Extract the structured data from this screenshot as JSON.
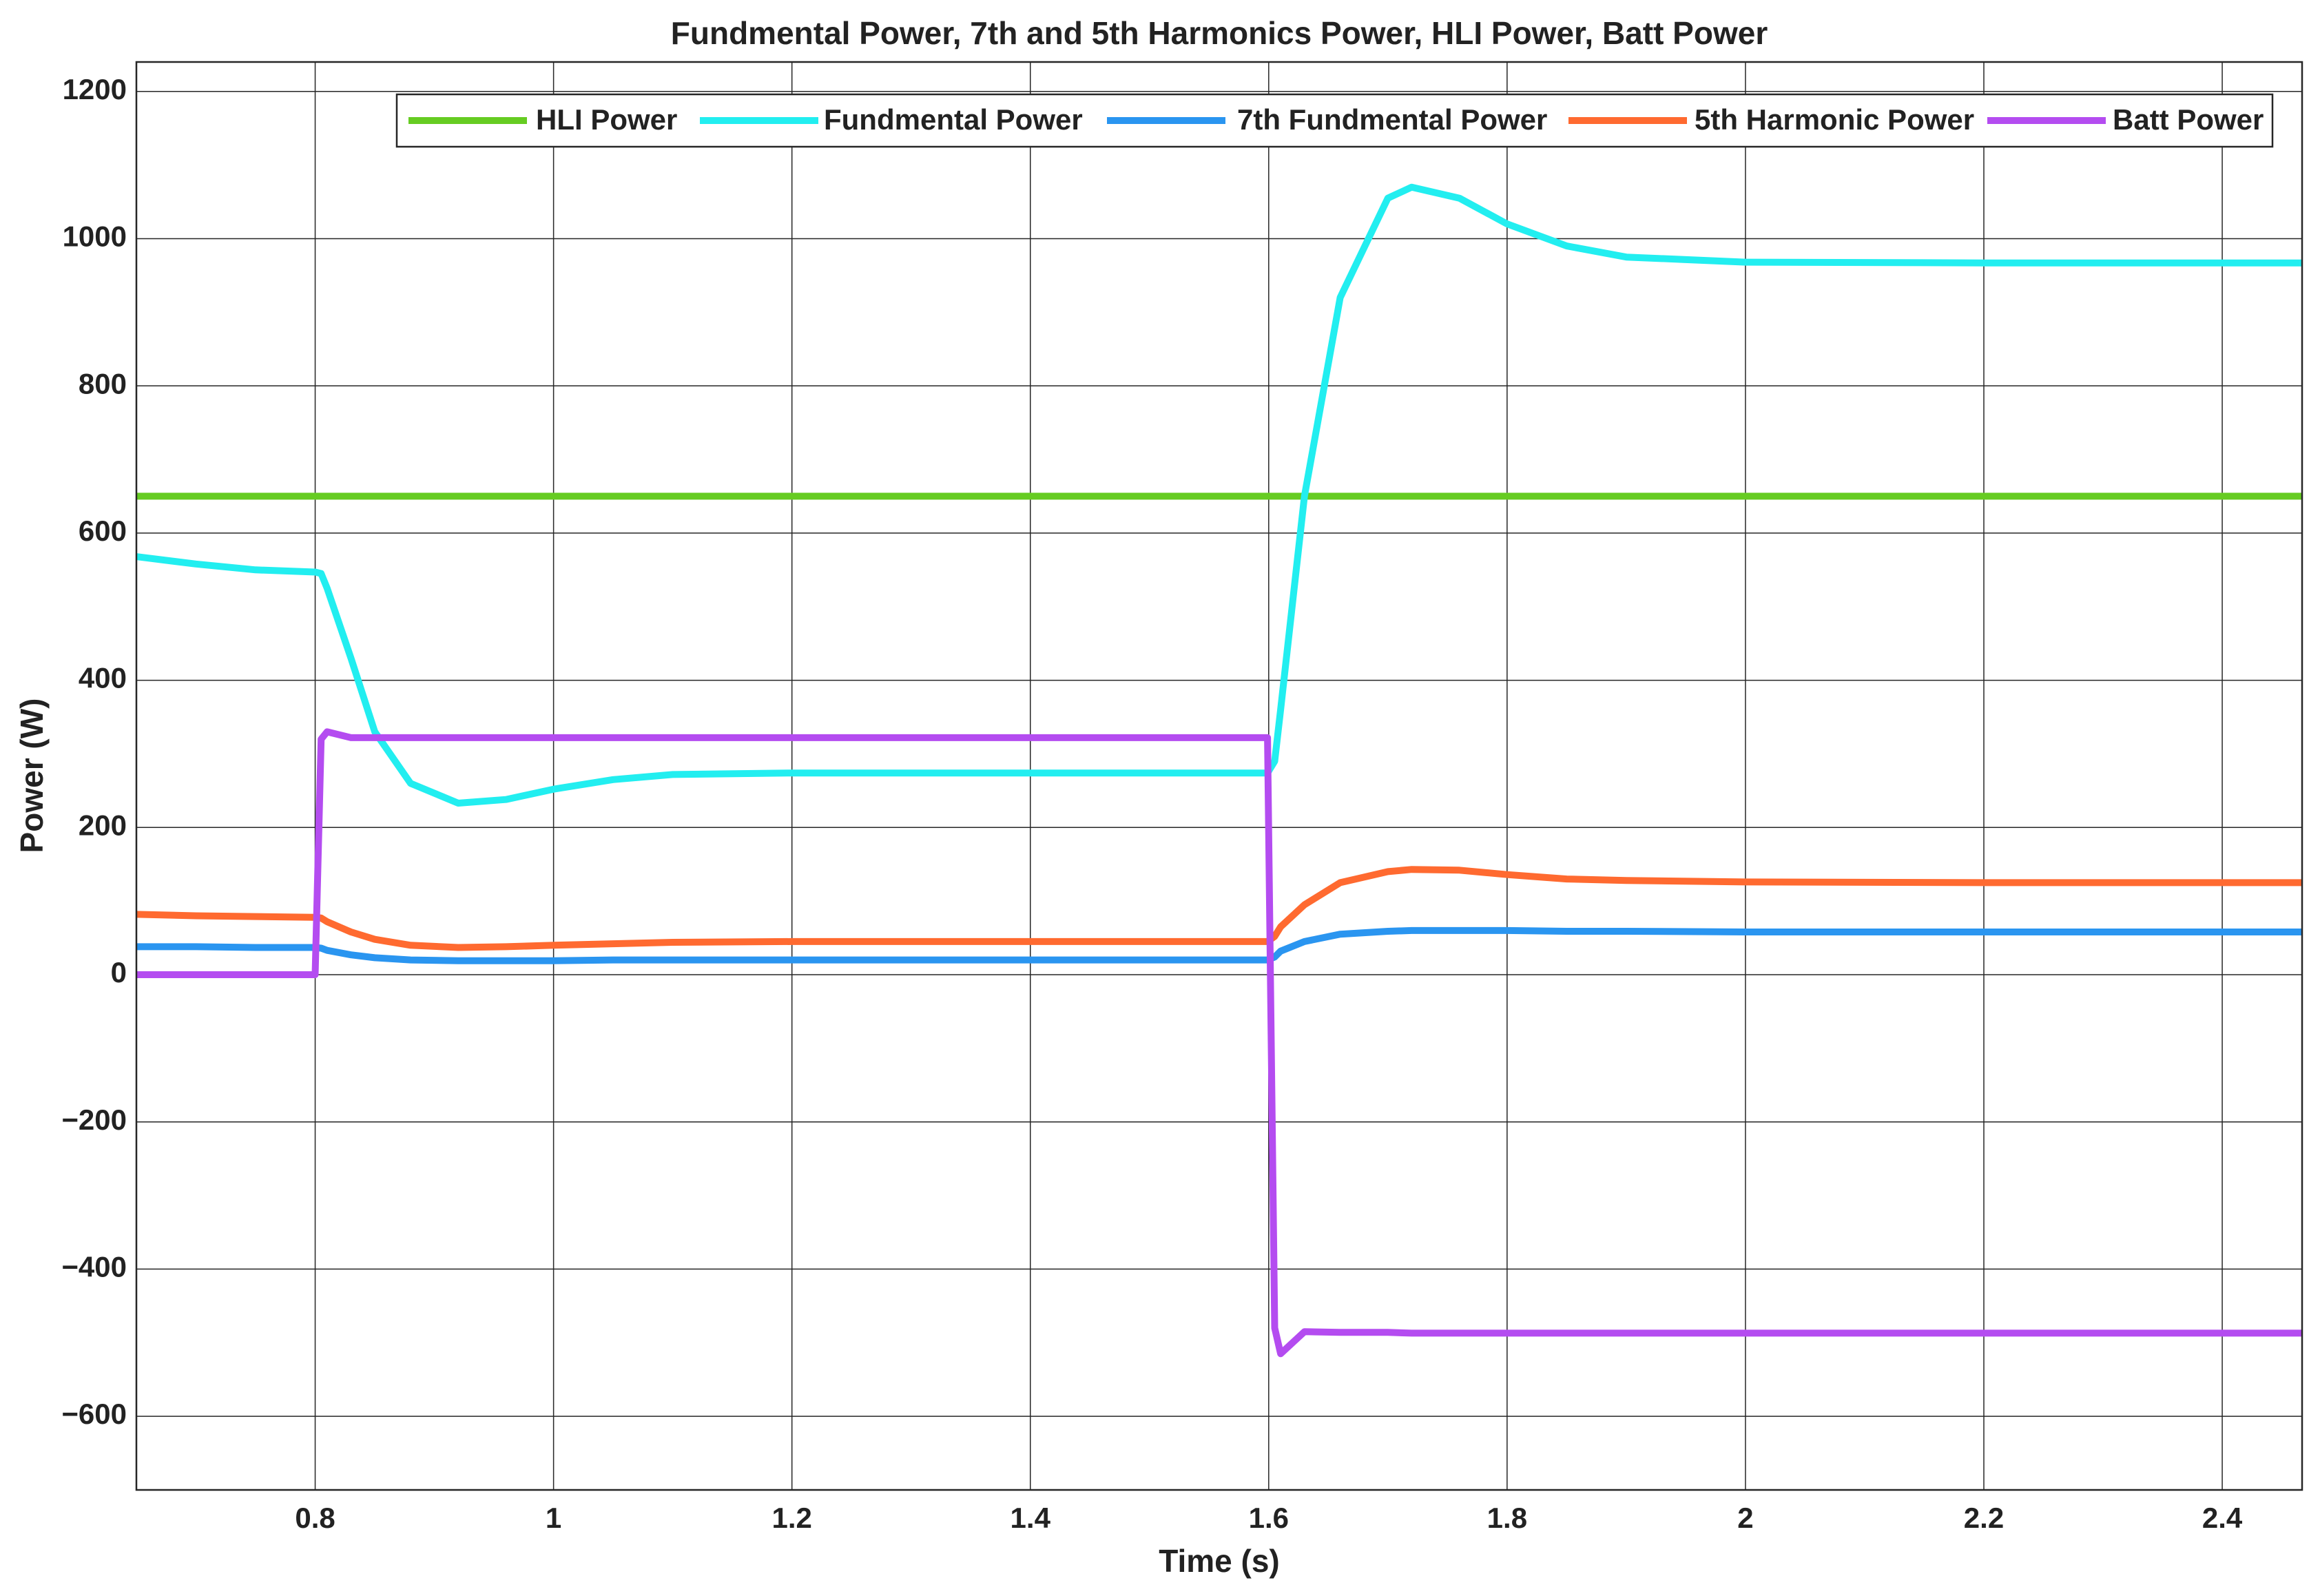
{
  "chart_data": {
    "type": "line",
    "title": "Fundmental  Power, 7th and 5th Harmonics Power, HLI Power, Batt Power",
    "x_label": "Time (s)",
    "y_label": "Power (W)",
    "x": [
      0.65,
      0.7,
      0.75,
      0.8,
      0.805,
      0.81,
      0.83,
      0.85,
      0.88,
      0.92,
      0.96,
      1.0,
      1.05,
      1.1,
      1.2,
      1.4,
      1.599,
      1.605,
      1.61,
      1.63,
      1.66,
      1.7,
      1.72,
      1.76,
      1.8,
      1.85,
      1.9,
      2.0,
      2.2,
      2.467
    ],
    "series": [
      {
        "name": "HLI Power",
        "color": "#66cc22",
        "values": [
          650,
          650,
          650,
          650,
          650,
          650,
          650,
          650,
          650,
          650,
          650,
          650,
          650,
          650,
          650,
          650,
          650,
          650,
          650,
          650,
          650,
          650,
          650,
          650,
          650,
          650,
          650,
          650,
          650,
          650
        ]
      },
      {
        "name": "Fundmental  Power",
        "color": "#22eef0",
        "values": [
          568,
          558,
          550,
          547,
          545,
          525,
          430,
          330,
          260,
          233,
          238,
          252,
          265,
          272,
          274,
          274,
          274,
          290,
          360,
          650,
          920,
          1055,
          1070,
          1055,
          1020,
          990,
          975,
          968,
          967,
          967
        ]
      },
      {
        "name": "7th Fundmental  Power",
        "color": "#2a95f0",
        "values": [
          38,
          38,
          37,
          37,
          36,
          33,
          27,
          23,
          20,
          19,
          19,
          19,
          20,
          20,
          20,
          20,
          20,
          24,
          32,
          45,
          55,
          59,
          60,
          60,
          60,
          59,
          59,
          58,
          58,
          58
        ]
      },
      {
        "name": "5th Harmonic Power",
        "color": "#ff6a30",
        "values": [
          82,
          80,
          79,
          78,
          77,
          72,
          58,
          48,
          40,
          37,
          38,
          40,
          42,
          44,
          45,
          45,
          45,
          52,
          65,
          95,
          125,
          140,
          143,
          142,
          136,
          130,
          128,
          126,
          125,
          125
        ]
      },
      {
        "name": "Batt Power",
        "color": "#b44cf0",
        "values": [
          0,
          0,
          0,
          0,
          320,
          330,
          322,
          322,
          322,
          322,
          322,
          322,
          322,
          322,
          322,
          322,
          322,
          -480,
          -515,
          -485,
          -486,
          -486,
          -487,
          -487,
          -487,
          -487,
          -487,
          -487,
          -487,
          -487
        ]
      }
    ],
    "xlim": [
      0.65,
      2.467
    ],
    "ylim": [
      -700,
      1240
    ],
    "xticks": [
      0.8,
      1,
      1.2,
      1.4,
      1.6,
      1.8,
      2,
      2.2,
      2.4
    ],
    "yticks": [
      {
        "value": -600,
        "label": "−600"
      },
      {
        "value": -400,
        "label": "−400"
      },
      {
        "value": -200,
        "label": "−200"
      },
      0,
      200,
      400,
      600,
      800,
      1000,
      1200
    ],
    "grid": true,
    "legend": "top-right"
  }
}
